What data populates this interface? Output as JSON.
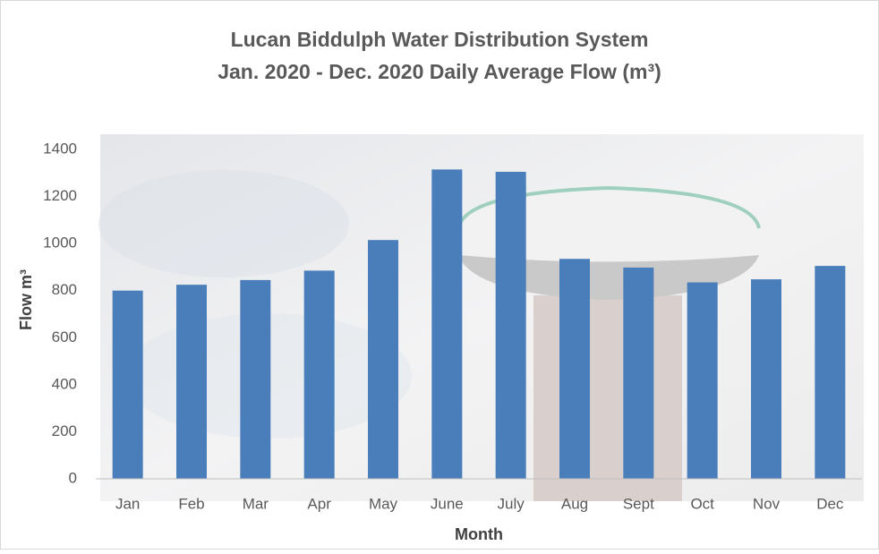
{
  "chart_data": {
    "type": "bar",
    "title": "Lucan Biddulph Water Distribution System",
    "subtitle": "Jan. 2020 - Dec. 2020 Daily Average Flow (m³)",
    "x_label": "Month",
    "y_label": "Flow m³",
    "categories": [
      "Jan",
      "Feb",
      "Mar",
      "Apr",
      "May",
      "June",
      "July",
      "Aug",
      "Sept",
      "Oct",
      "Nov",
      "Dec"
    ],
    "values": [
      800,
      825,
      845,
      885,
      1015,
      1315,
      1305,
      935,
      898,
      835,
      848,
      905
    ],
    "color": "#4a7ebb",
    "ylim": [
      0,
      1400
    ],
    "yticks": [
      0,
      200,
      400,
      600,
      800,
      1000,
      1200,
      1400
    ],
    "grid": false
  }
}
